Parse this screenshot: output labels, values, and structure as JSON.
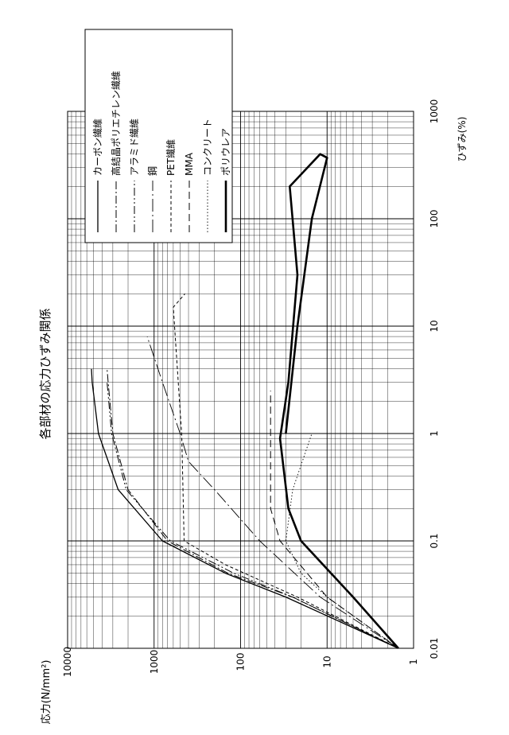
{
  "chart_data": {
    "type": "line",
    "title": "各部材の応力ひずみ関係",
    "xlabel": "ひずみ(%)",
    "ylabel": "応力(N/mm²)",
    "x_scale": "log",
    "y_scale": "log",
    "xlim": [
      0.01,
      1000
    ],
    "ylim": [
      1,
      10000
    ],
    "x_ticks": [
      "0.01",
      "0.1",
      "1",
      "10",
      "100",
      "1000"
    ],
    "y_ticks": [
      "1",
      "10",
      "100",
      "1000",
      "10000"
    ],
    "grid": true,
    "orientation": "rotated 90° counter-clockwise on page",
    "legend_position": "top-left of the rotated chart (page top-right)",
    "series": [
      {
        "name": "カーボン繊維",
        "style": "solid-thin",
        "points": [
          [
            0.01,
            1.5
          ],
          [
            0.03,
            30
          ],
          [
            0.05,
            150
          ],
          [
            0.1,
            800
          ],
          [
            0.3,
            2600
          ],
          [
            1,
            4400
          ],
          [
            3,
            5200
          ],
          [
            4,
            5300
          ]
        ]
      },
      {
        "name": "高結晶ポリエチレン繊維",
        "style": "dash-dot",
        "points": [
          [
            0.01,
            1.5
          ],
          [
            0.03,
            25
          ],
          [
            0.05,
            140
          ],
          [
            0.1,
            700
          ],
          [
            0.3,
            2000
          ],
          [
            1,
            3000
          ],
          [
            3,
            3400
          ],
          [
            4,
            3500
          ]
        ]
      },
      {
        "name": "アラミド繊維",
        "style": "dash-dot-dot",
        "points": [
          [
            0.01,
            1.5
          ],
          [
            0.03,
            25
          ],
          [
            0.05,
            120
          ],
          [
            0.1,
            650
          ],
          [
            0.3,
            2100
          ],
          [
            1,
            3100
          ],
          [
            3,
            3500
          ]
        ]
      },
      {
        "name": "鋼",
        "style": "long-dash-dot",
        "points": [
          [
            0.01,
            1.5
          ],
          [
            0.03,
            12
          ],
          [
            0.1,
            60
          ],
          [
            0.3,
            200
          ],
          [
            0.55,
            400
          ],
          [
            1,
            500
          ],
          [
            3,
            800
          ],
          [
            8,
            1200
          ]
        ]
      },
      {
        "name": "PET繊維",
        "style": "short-dash",
        "points": [
          [
            0.01,
            1.5
          ],
          [
            0.03,
            22
          ],
          [
            0.06,
            150
          ],
          [
            0.1,
            450
          ],
          [
            0.5,
            470
          ],
          [
            1,
            480
          ],
          [
            15,
            600
          ],
          [
            20,
            440
          ]
        ]
      },
      {
        "name": "MMA",
        "style": "long-dash",
        "points": [
          [
            0.01,
            1.5
          ],
          [
            0.03,
            10
          ],
          [
            0.1,
            35
          ],
          [
            0.2,
            45
          ],
          [
            1,
            45
          ],
          [
            2.5,
            45
          ]
        ]
      },
      {
        "name": "コンクリート",
        "style": "dotted",
        "points": [
          [
            0.01,
            1.5
          ],
          [
            0.03,
            10
          ],
          [
            0.05,
            20
          ],
          [
            0.1,
            30
          ],
          [
            0.3,
            25
          ],
          [
            1,
            15
          ]
        ]
      },
      {
        "name": "ポリウレア",
        "style": "solid-thick",
        "points": [
          [
            0.01,
            1.5
          ],
          [
            0.03,
            5
          ],
          [
            0.1,
            20
          ],
          [
            0.2,
            28
          ],
          [
            0.9,
            35
          ],
          [
            3,
            28
          ],
          [
            30,
            22
          ],
          [
            200,
            27
          ],
          [
            400,
            12
          ],
          [
            370,
            10
          ],
          [
            100,
            15
          ],
          [
            10,
            22
          ],
          [
            1,
            30
          ]
        ]
      }
    ]
  },
  "labels": {
    "title": "各部材の応力ひずみ関係",
    "ylabel": "応力(N/mm²)",
    "xlabel": "ひずみ(%)"
  }
}
